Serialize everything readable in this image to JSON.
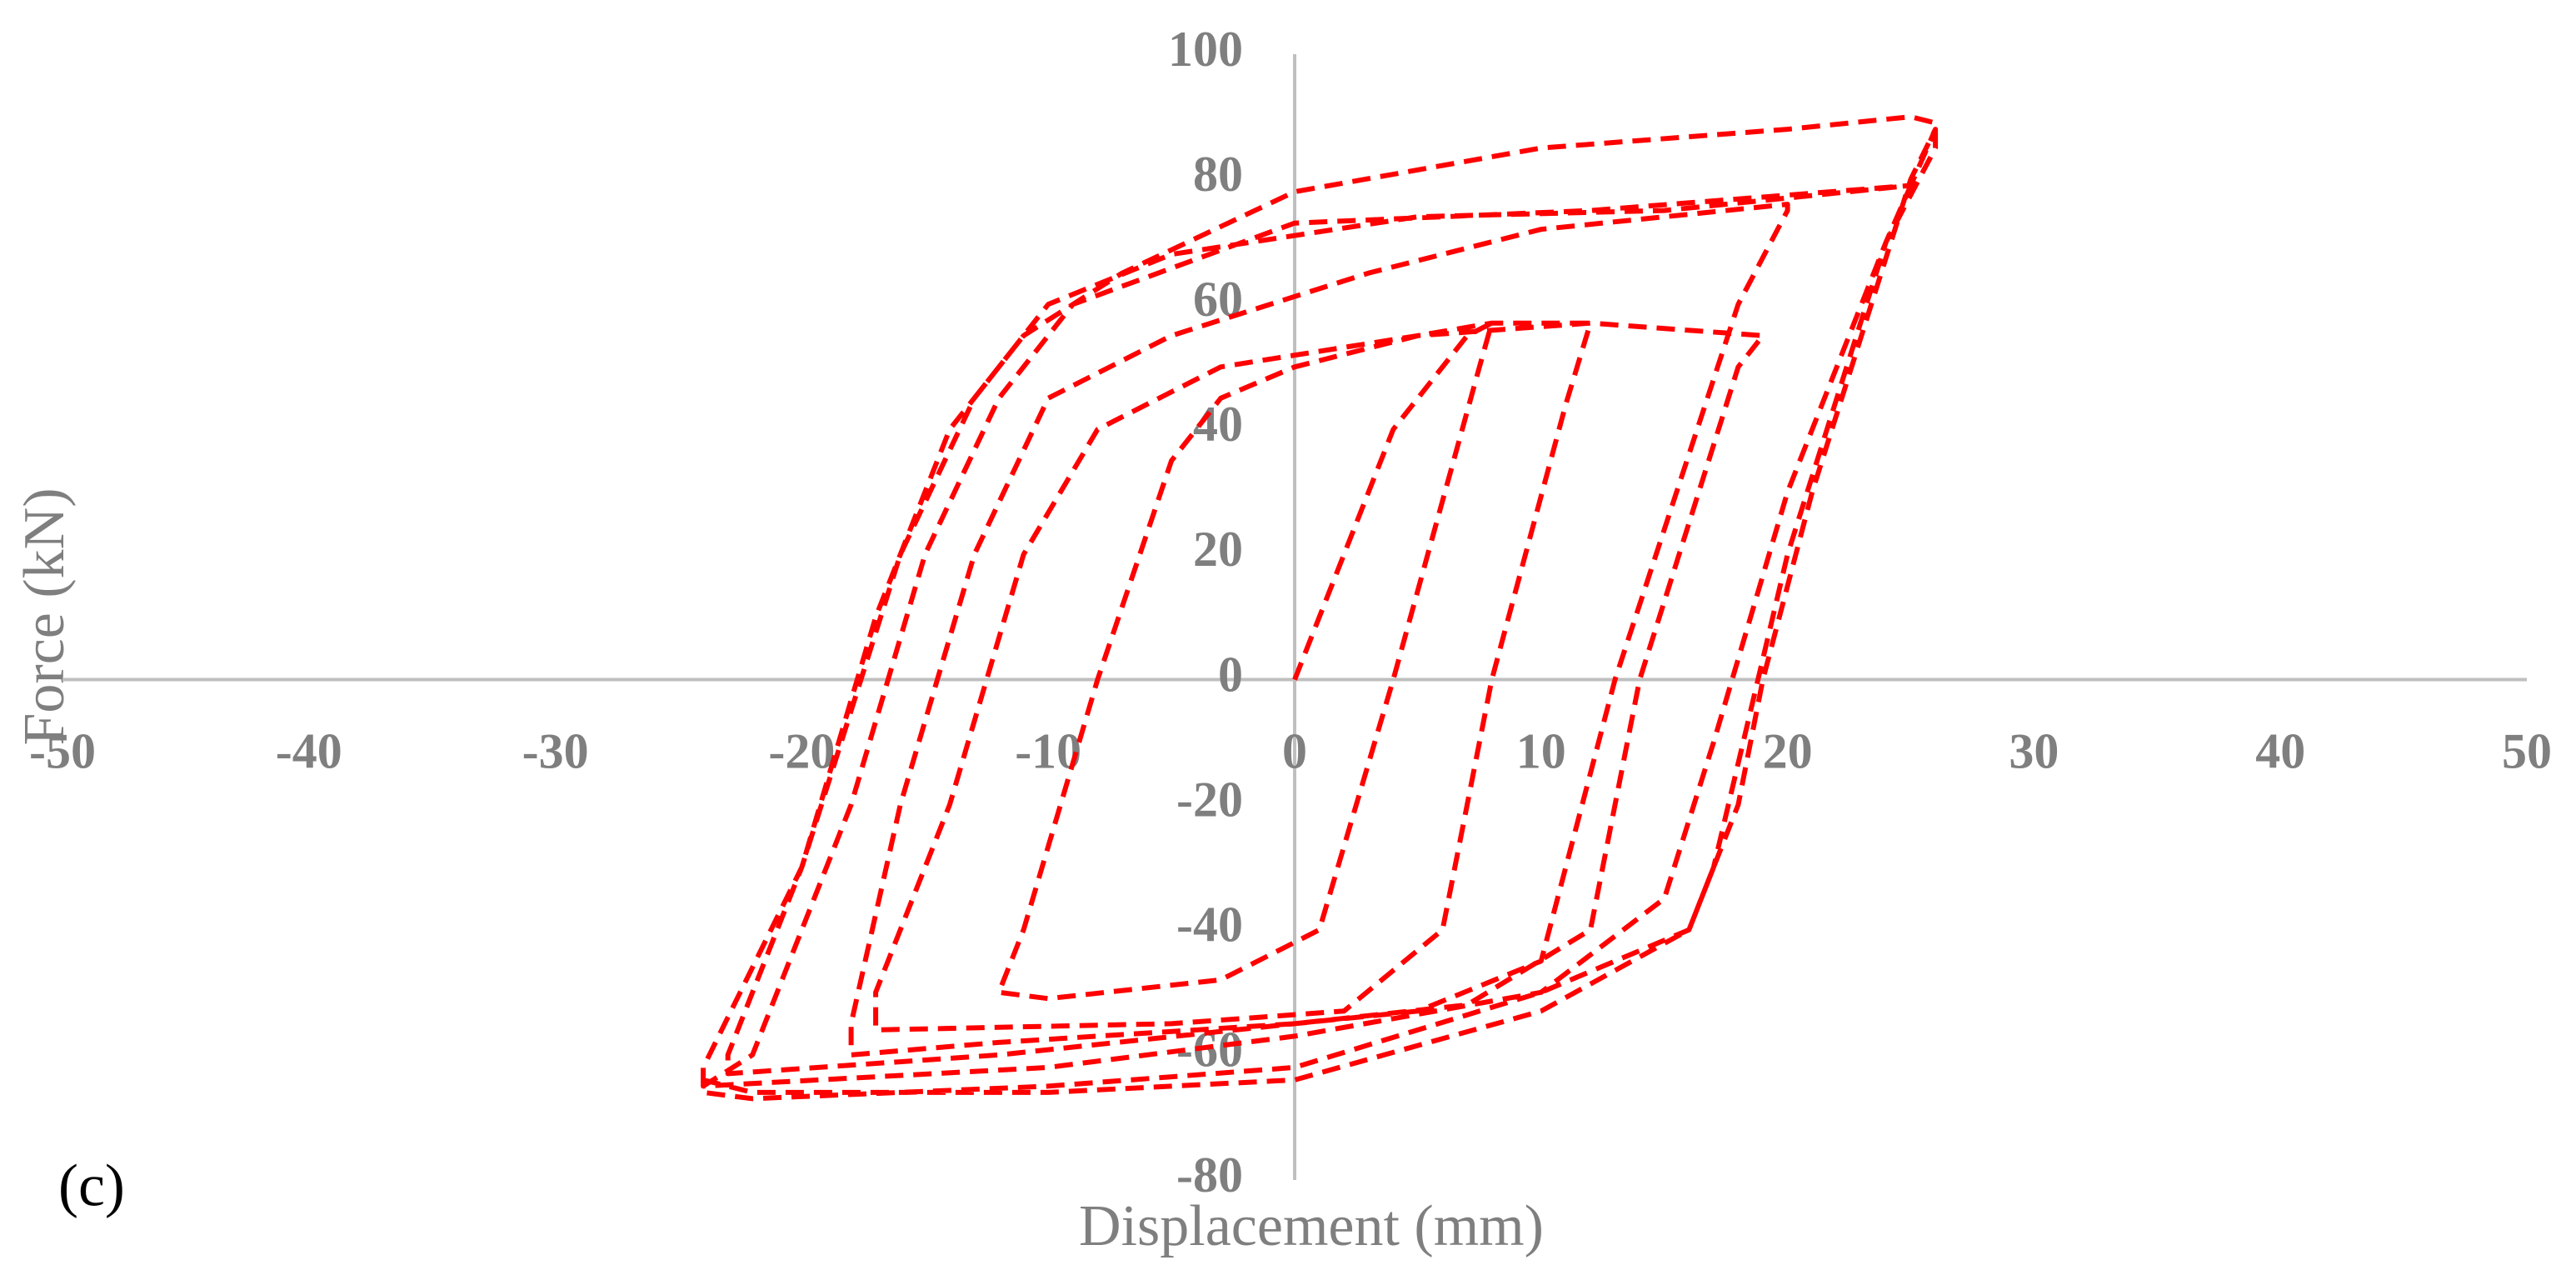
{
  "chart_data": {
    "type": "line",
    "panel_label": "(c)",
    "x_label": "Displacement (mm)",
    "y_label": "Force (kN)",
    "xlim": [
      -50,
      50
    ],
    "ylim": [
      -80,
      100
    ],
    "xticks": [
      -50,
      -40,
      -30,
      -20,
      -10,
      0,
      10,
      20,
      30,
      40,
      50
    ],
    "yticks": [
      -80,
      -60,
      -40,
      -20,
      0,
      20,
      40,
      60,
      80,
      100
    ],
    "grid": false,
    "color": "#ff0000",
    "x": [
      0,
      4,
      7,
      8,
      7.5,
      4,
      1,
      -3,
      -10,
      -12,
      -11,
      -8,
      -5,
      -3,
      0,
      5,
      8,
      12,
      11,
      8,
      6,
      2,
      -5,
      -17,
      -17,
      -14,
      -11,
      -8,
      -3,
      5,
      12,
      19,
      18,
      14,
      12,
      7,
      0,
      -12,
      -18,
      -18,
      -16,
      -13,
      -10,
      -5,
      3,
      10,
      20,
      20,
      18,
      13,
      10,
      5,
      0,
      -12,
      -23,
      -23,
      -20,
      -16,
      -13,
      -10,
      -5,
      5,
      15,
      20,
      25,
      24,
      20,
      17,
      15,
      10,
      0,
      -10,
      -24,
      -22,
      -18,
      -15,
      -12,
      -9,
      0,
      12,
      25,
      26,
      25,
      21,
      19,
      18,
      16,
      10,
      0,
      -10,
      -22,
      -24,
      -24,
      -20,
      -17,
      -14,
      -11,
      -7,
      0,
      10,
      20,
      25,
      26,
      26,
      24,
      20,
      17,
      16,
      10,
      0,
      -10,
      -22,
      -24
    ],
    "values": [
      0,
      40,
      55,
      57,
      50,
      0,
      -40,
      -48,
      -51,
      -50,
      -40,
      0,
      35,
      45,
      50,
      55,
      57,
      57,
      44,
      0,
      -40,
      -53,
      -55,
      -56,
      -50,
      -20,
      20,
      40,
      50,
      55,
      57,
      55,
      50,
      0,
      -40,
      -52,
      -55,
      -58,
      -60,
      -55,
      -20,
      20,
      45,
      55,
      65,
      72,
      76,
      75,
      60,
      0,
      -45,
      -53,
      -55,
      -60,
      -63,
      -60,
      -30,
      20,
      45,
      60,
      68,
      74,
      75,
      77,
      79,
      70,
      30,
      -10,
      -35,
      -50,
      -57,
      -62,
      -65,
      -60,
      -20,
      20,
      45,
      60,
      73,
      75,
      79,
      88,
      80,
      30,
      0,
      -20,
      -40,
      -50,
      -62,
      -65,
      -67,
      -66,
      -62,
      -30,
      10,
      40,
      55,
      65,
      78,
      85,
      88,
      90,
      89,
      85,
      70,
      20,
      -30,
      -40,
      -53,
      -64,
      -66,
      -66,
      -64
    ]
  }
}
